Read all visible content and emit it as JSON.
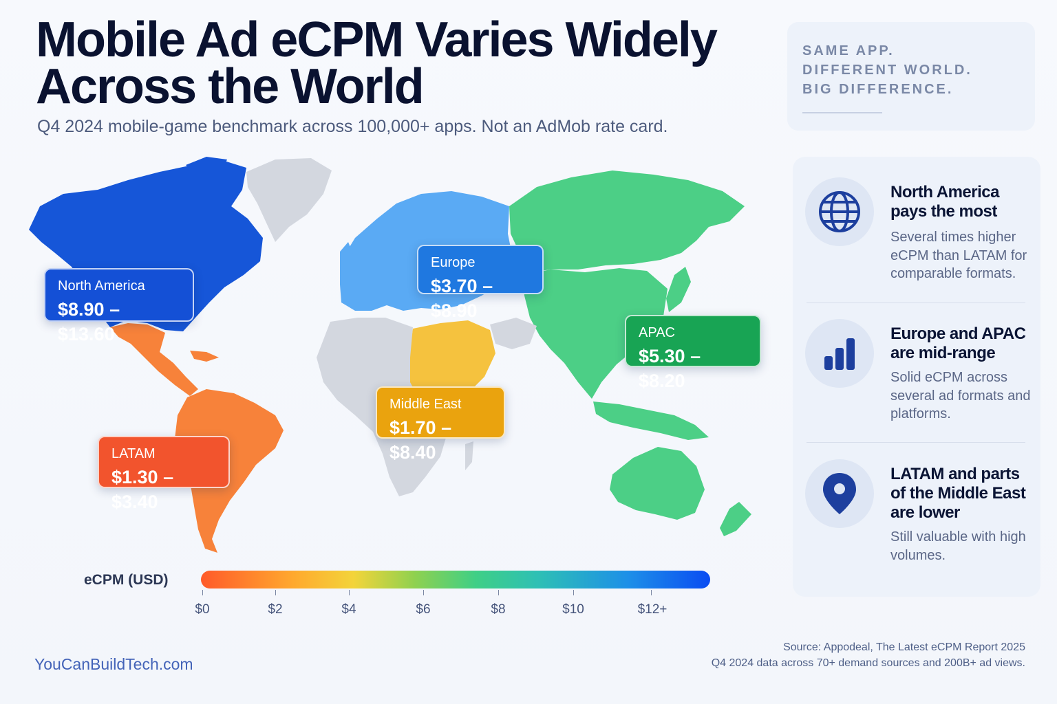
{
  "title": {
    "line1": "Mobile Ad eCPM Varies Widely",
    "line2": "Across the World"
  },
  "subtitle": "Q4 2024 mobile-game benchmark across 100,000+ apps. Not an AdMob rate card.",
  "tagline": [
    "SAME APP.",
    "DIFFERENT WORLD.",
    "BIG DIFFERENCE."
  ],
  "regions": [
    {
      "name": "North America",
      "range": "$8.90 – $13.60",
      "min": 8.9,
      "max": 13.6,
      "color": "#1450d6"
    },
    {
      "name": "Europe",
      "range": "$3.70 – $8.90",
      "min": 3.7,
      "max": 8.9,
      "color": "#1f78e0"
    },
    {
      "name": "APAC",
      "range": "$5.30 – $8.20",
      "min": 5.3,
      "max": 8.2,
      "color": "#18a454"
    },
    {
      "name": "Middle East",
      "range": "$1.70 – $8.40",
      "min": 1.7,
      "max": 8.4,
      "color": "#eaa30e"
    },
    {
      "name": "LATAM",
      "range": "$1.30 – $3.40",
      "min": 1.3,
      "max": 3.4,
      "color": "#f2542d"
    }
  ],
  "legend": {
    "label": "eCPM (USD)",
    "ticks": [
      "$0",
      "$2",
      "$4",
      "$6",
      "$8",
      "$10",
      "$12+"
    ]
  },
  "insights": [
    {
      "icon": "globe-icon",
      "title": "North America pays the most",
      "text": "Several times higher eCPM than LATAM for comparable formats."
    },
    {
      "icon": "bar-chart-icon",
      "title": "Europe and APAC are mid-range",
      "text": "Solid eCPM across several ad formats and platforms."
    },
    {
      "icon": "map-pin-icon",
      "title": "LATAM and parts of the Middle East are lower",
      "text": "Still valuable with high volumes."
    }
  ],
  "footer": {
    "brand": "YouCanBuildTech.com",
    "source_line1": "Source: Appodeal, The Latest eCPM Report 2025",
    "source_line2": "Q4 2024 data across 70+ demand sources and 200B+ ad views."
  },
  "colors": {
    "north_america_fill": "#1656d8",
    "europe_fill": "#5aaaf4",
    "apac_fill": "#4ccf86",
    "middle_east_fill": "#f5c23e",
    "latam_fill": "#f7823a",
    "no_data_fill": "#d3d7df"
  }
}
